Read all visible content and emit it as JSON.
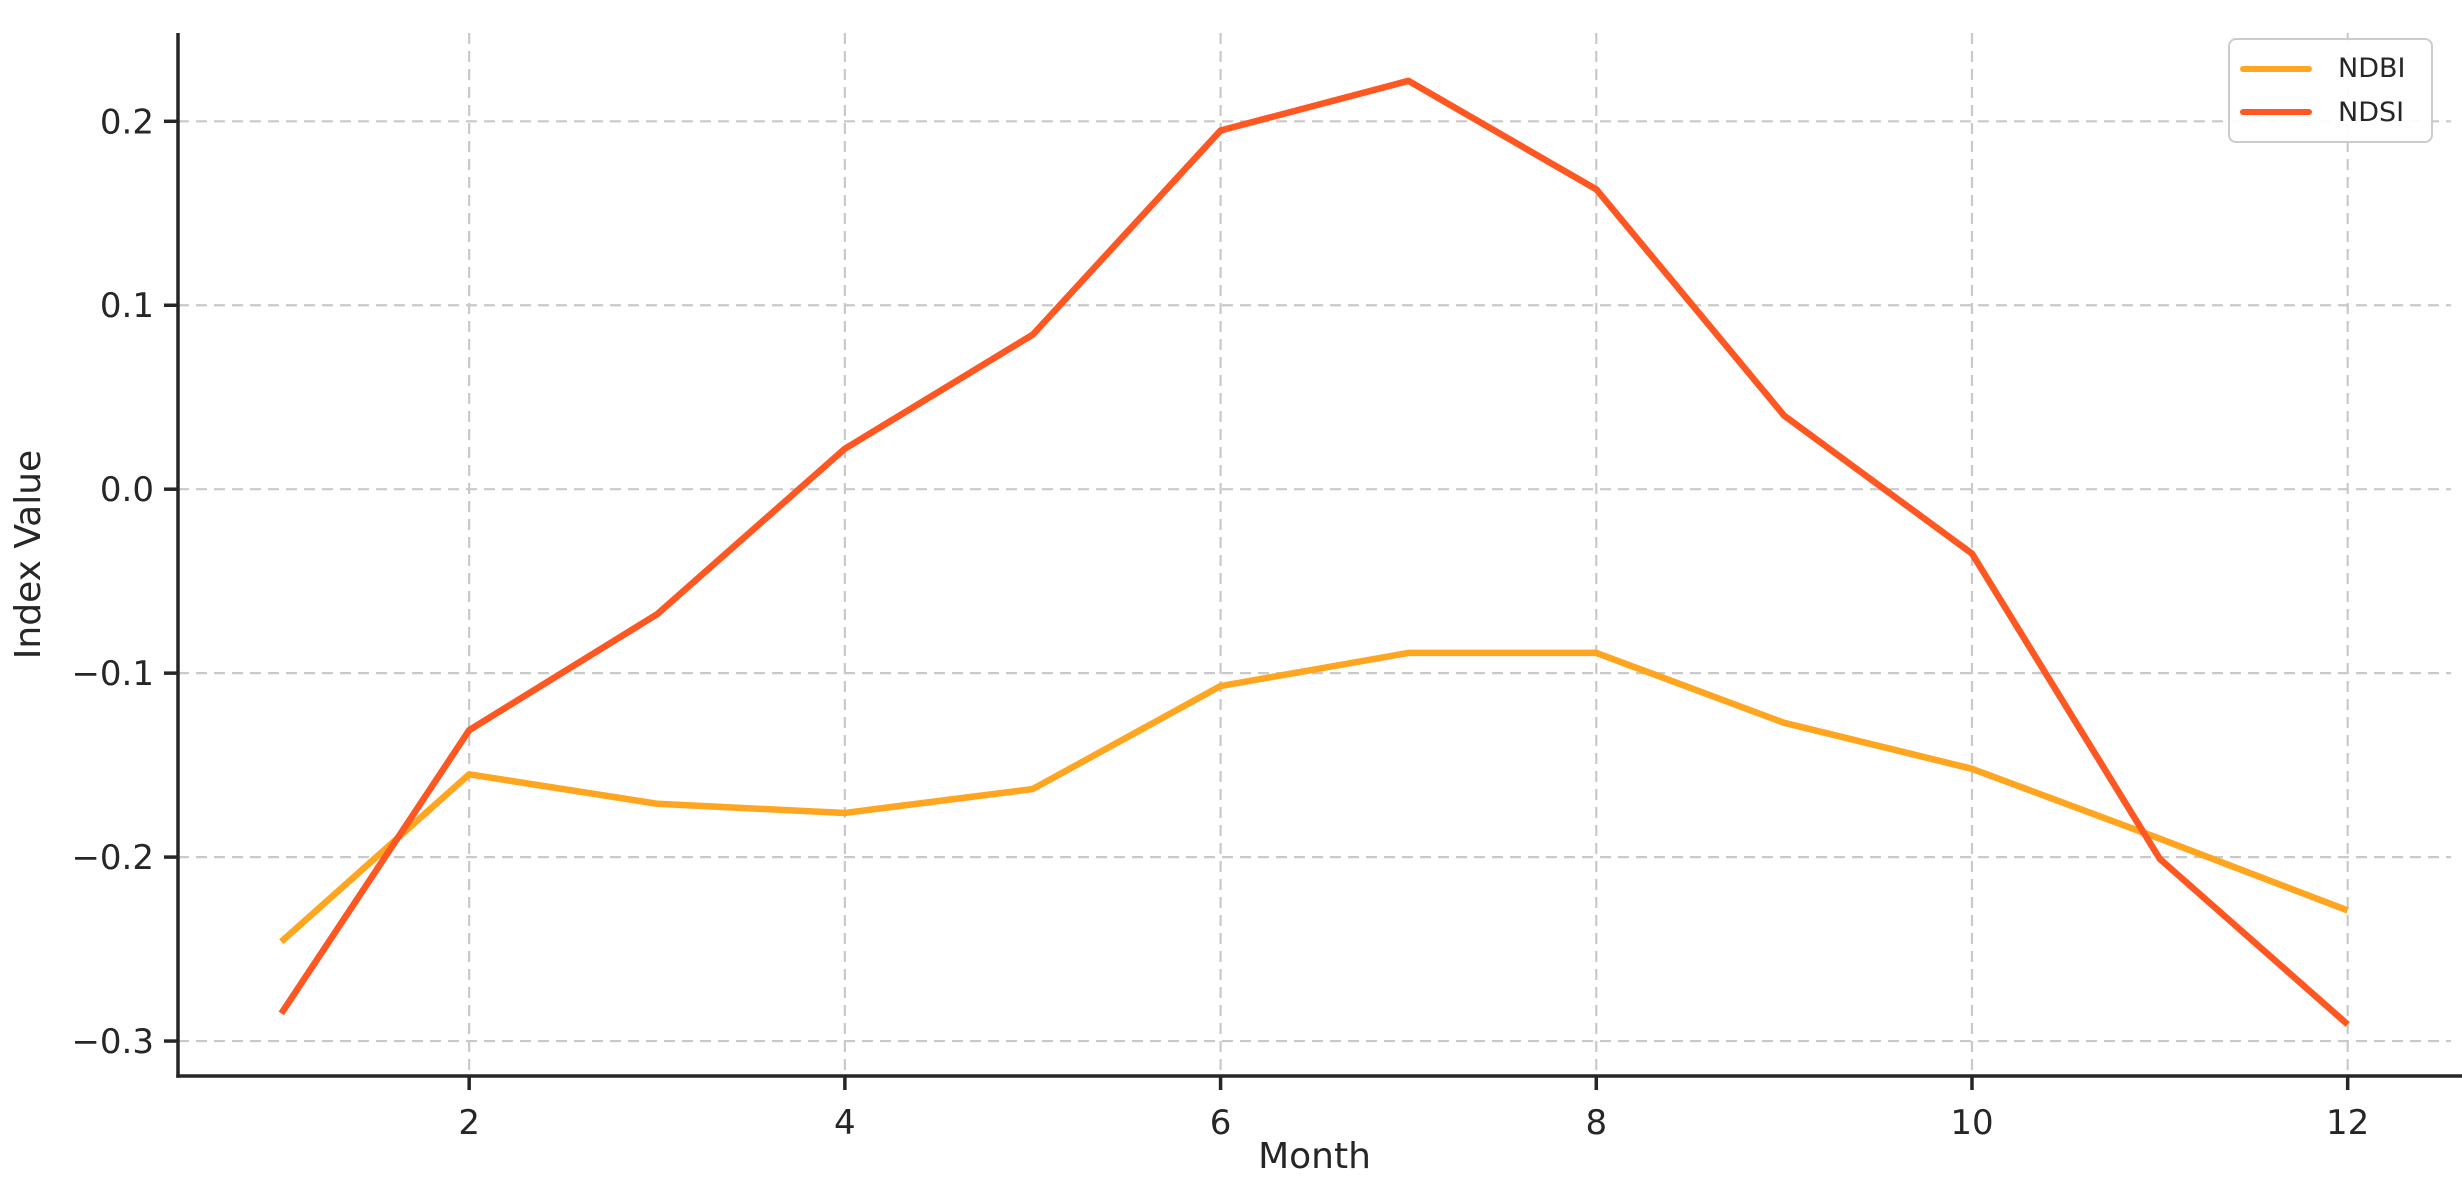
{
  "figure": {
    "background": "#ffffff"
  },
  "chart_data": {
    "type": "line",
    "xlabel": "Month",
    "ylabel": "Index Value",
    "x": [
      1,
      2,
      3,
      4,
      5,
      6,
      7,
      8,
      9,
      10,
      11,
      12
    ],
    "series": [
      {
        "name": "NDBI",
        "color": "#FFA520",
        "values": [
          -0.246,
          -0.155,
          -0.171,
          -0.176,
          -0.163,
          -0.107,
          -0.089,
          -0.089,
          -0.127,
          -0.152,
          -0.19,
          -0.229
        ]
      },
      {
        "name": "NDSI",
        "color": "#FF5722",
        "values": [
          -0.285,
          -0.131,
          -0.068,
          0.022,
          0.084,
          0.195,
          0.222,
          0.163,
          0.04,
          -0.035,
          -0.201,
          -0.291
        ]
      }
    ],
    "xlim": [
      0.45,
      12.55
    ],
    "ylim": [
      -0.319,
      0.248
    ],
    "xticks": {
      "values": [
        2,
        4,
        6,
        8,
        10,
        12
      ],
      "labels": [
        "2",
        "4",
        "6",
        "8",
        "10",
        "12"
      ]
    },
    "yticks": {
      "values": [
        0.2,
        0.1,
        0.0,
        -0.1,
        -0.2,
        -0.3
      ],
      "labels": [
        "0.2",
        "0.1",
        "0.0",
        "−0.1",
        "−0.2",
        "−0.3"
      ]
    },
    "grid": {
      "visible": true,
      "style": "dashed",
      "color": "#c9c9c9"
    },
    "axis_color": "#262626",
    "legend": {
      "position": "upper right",
      "items": [
        {
          "label": "NDBI",
          "color": "#FFA520"
        },
        {
          "label": "NDSI",
          "color": "#FF5722"
        }
      ]
    }
  }
}
